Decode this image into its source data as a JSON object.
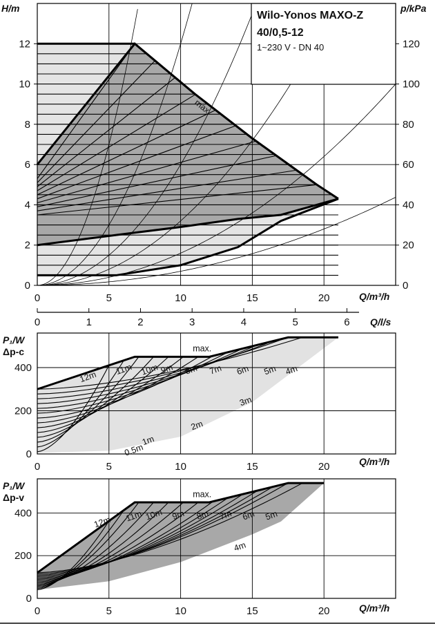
{
  "chart_data": [
    {
      "type": "line",
      "name": "head-curves",
      "title": "Wilo-Yonos MAXO-Z",
      "subtitle": "40/0,5-12",
      "spec": "1~230 V - DN 40",
      "xlabel": "Q/m³/h",
      "ylabel_left": "H/m",
      "ylabel_right": "p/kPa",
      "xlim": [
        0,
        25
      ],
      "ylim": [
        0,
        14
      ],
      "ylim_right": [
        0,
        140
      ],
      "x_ticks": [
        0,
        5,
        10,
        15,
        20
      ],
      "y_ticks": [
        0,
        2,
        4,
        6,
        8,
        10,
        12
      ],
      "y_ticks_right": [
        0,
        20,
        40,
        60,
        80,
        100,
        120
      ],
      "secondary_xlabel": "Q/l/s",
      "secondary_x_ticks": [
        0,
        1,
        2,
        3,
        4,
        5,
        6
      ],
      "grid": true,
      "annotations": [
        {
          "text": "max.",
          "x": 12.3,
          "y": 9.1
        }
      ],
      "max_curve": {
        "x": [
          0,
          6.8,
          11,
          15,
          19.5,
          21
        ],
        "y": [
          12,
          12,
          9.5,
          7.3,
          5.0,
          4.3
        ]
      },
      "dpc_lines": [
        0.5,
        1,
        1.5,
        2,
        2.5,
        3,
        3.5,
        4,
        4.5,
        5,
        5.5,
        6,
        6.5,
        7,
        7.5,
        8,
        8.5,
        9,
        9.5,
        10,
        10.5,
        11,
        11.5,
        12
      ],
      "dpv_envelope": {
        "upper": {
          "x": [
            0,
            6.8,
            11,
            15,
            19.5
          ],
          "y": [
            6,
            12,
            9.5,
            7.3,
            5.0
          ]
        },
        "lower": {
          "x": [
            0,
            5.5,
            10,
            14,
            17
          ],
          "y": [
            2,
            2.5,
            2.9,
            3.3,
            3.5
          ]
        }
      },
      "min_curve": {
        "x": [
          0,
          5.5,
          10,
          14,
          17,
          21
        ],
        "y": [
          0.5,
          0.5,
          1.0,
          1.9,
          3.2,
          4.3
        ]
      },
      "system_curves_k": [
        0.28,
        0.12,
        0.06,
        0.032,
        0.016,
        0.007
      ]
    },
    {
      "type": "line",
      "name": "power-dp-c",
      "ylabel_line1": "P₁/W",
      "ylabel_line2": "Δp-c",
      "xlabel": "Q/m³/h",
      "xlim": [
        0,
        25
      ],
      "ylim": [
        0,
        560
      ],
      "x_ticks": [
        0,
        5,
        10,
        15,
        20
      ],
      "y_ticks": [
        0,
        200,
        400
      ],
      "grid": true,
      "max_curve": {
        "x": [
          0,
          6.8,
          12,
          17.5,
          21
        ],
        "y": [
          300,
          450,
          450,
          540,
          540
        ]
      },
      "labels": [
        {
          "text": "max.",
          "x": 11.5,
          "y": 475
        },
        {
          "text": "12m",
          "x": 3.6,
          "y": 345
        },
        {
          "text": "11m",
          "x": 6.1,
          "y": 380
        },
        {
          "text": "10m",
          "x": 7.9,
          "y": 378
        },
        {
          "text": "9m",
          "x": 9.1,
          "y": 382
        },
        {
          "text": "8m",
          "x": 10.8,
          "y": 378
        },
        {
          "text": "7m",
          "x": 12.5,
          "y": 378
        },
        {
          "text": "6m",
          "x": 14.4,
          "y": 376
        },
        {
          "text": "5m",
          "x": 16.3,
          "y": 376
        },
        {
          "text": "4m",
          "x": 17.8,
          "y": 376
        },
        {
          "text": "3m",
          "x": 14.6,
          "y": 232
        },
        {
          "text": "2m",
          "x": 11.2,
          "y": 120
        },
        {
          "text": "1m",
          "x": 7.8,
          "y": 50
        },
        {
          "text": "0.5m",
          "x": 6.8,
          "y": 6
        }
      ]
    },
    {
      "type": "line",
      "name": "power-dp-v",
      "ylabel_line1": "P₁/W",
      "ylabel_line2": "Δp-v",
      "xlabel": "Q/m³/h",
      "xlim": [
        0,
        25
      ],
      "ylim": [
        0,
        560
      ],
      "x_ticks": [
        0,
        5,
        10,
        15,
        20
      ],
      "y_ticks": [
        0,
        200,
        400
      ],
      "grid": true,
      "max_curve": {
        "x": [
          0,
          6.8,
          12,
          17.5,
          20
        ],
        "y": [
          120,
          450,
          450,
          540,
          540
        ]
      },
      "labels": [
        {
          "text": "max.",
          "x": 11.5,
          "y": 475
        },
        {
          "text": "12m",
          "x": 4.6,
          "y": 345
        },
        {
          "text": "11m",
          "x": 6.8,
          "y": 373
        },
        {
          "text": "10m",
          "x": 8.2,
          "y": 380
        },
        {
          "text": "9m",
          "x": 9.9,
          "y": 378
        },
        {
          "text": "8m",
          "x": 11.6,
          "y": 378
        },
        {
          "text": "7m",
          "x": 13.2,
          "y": 378
        },
        {
          "text": "6m",
          "x": 14.8,
          "y": 376
        },
        {
          "text": "5m",
          "x": 16.4,
          "y": 376
        },
        {
          "text": "4m",
          "x": 14.2,
          "y": 230
        }
      ]
    }
  ]
}
